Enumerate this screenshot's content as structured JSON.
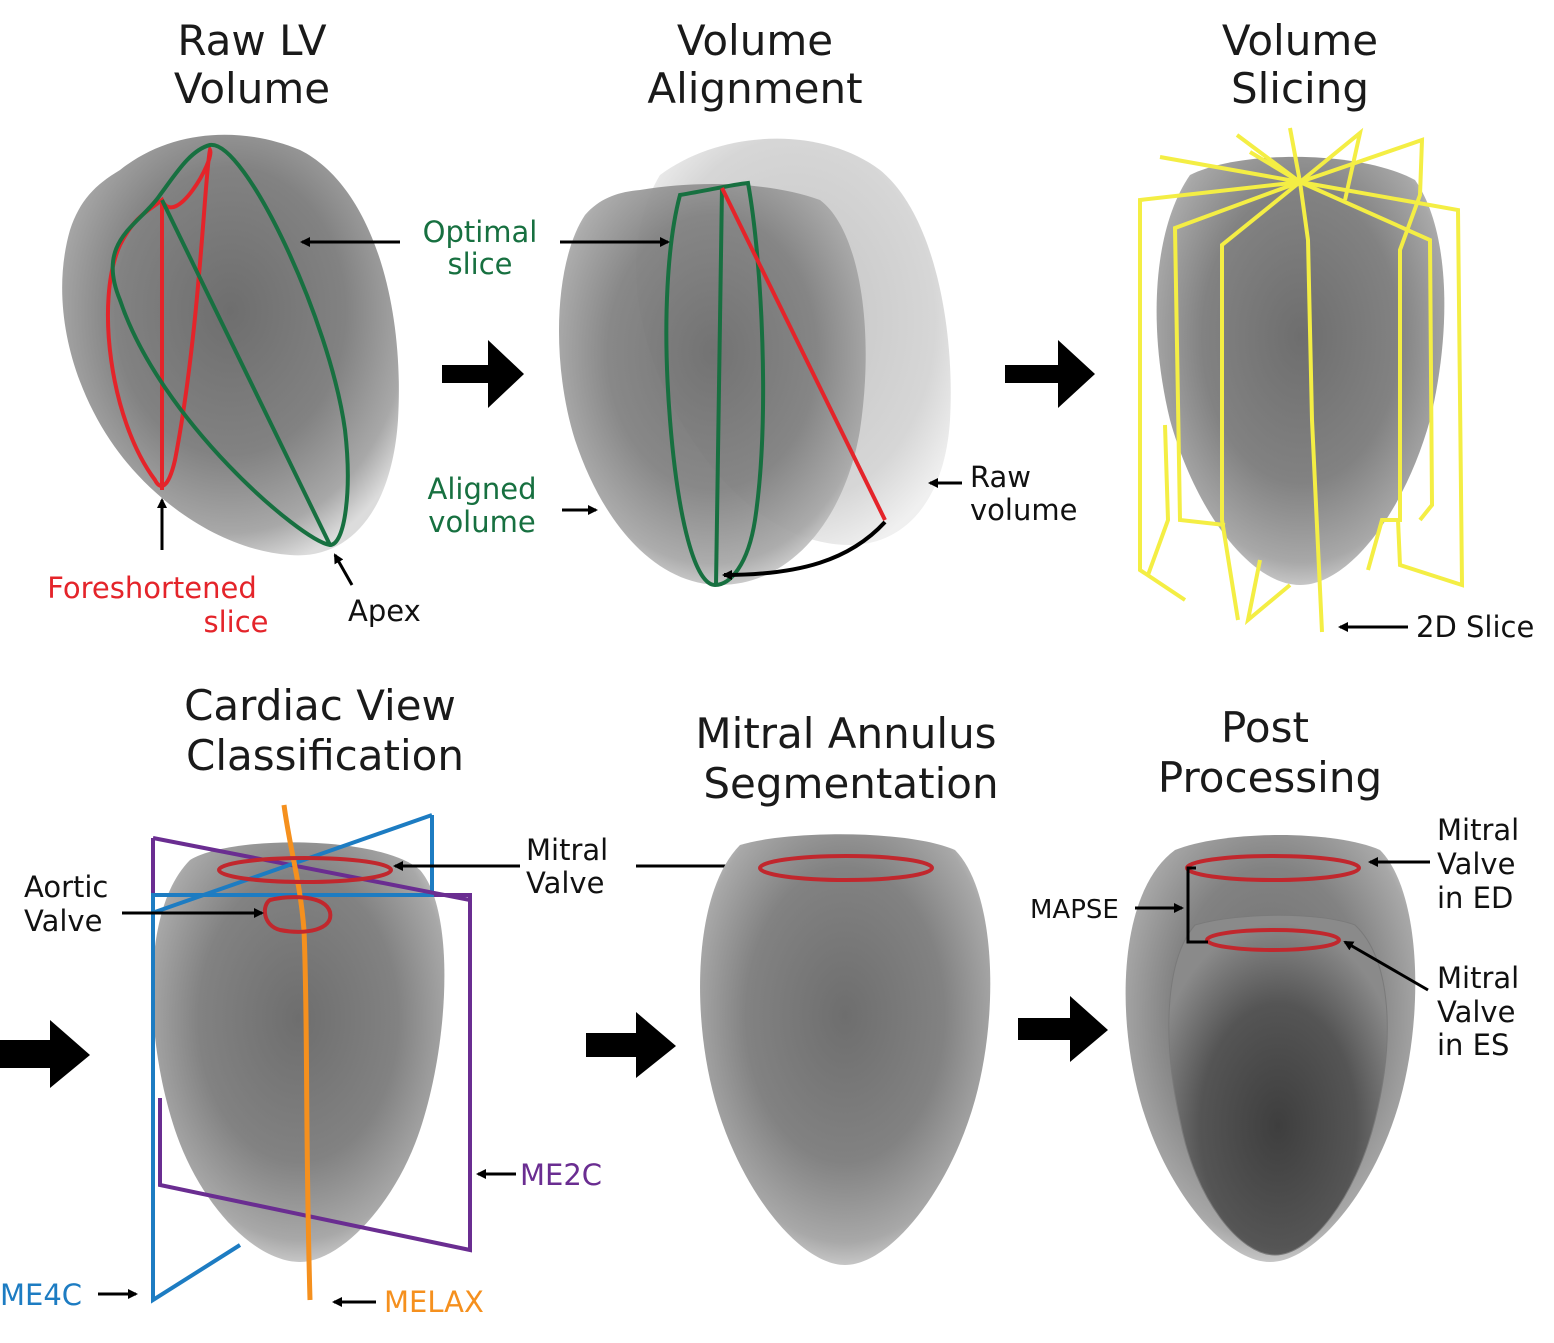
{
  "panels": {
    "raw": {
      "title": [
        "Raw LV",
        "Volume"
      ],
      "foreshortened": [
        "Foreshortened",
        "slice"
      ],
      "apex": "Apex"
    },
    "align": {
      "title": [
        "Volume",
        "Alignment"
      ],
      "optimal": [
        "Optimal",
        "slice"
      ],
      "aligned": [
        "Aligned",
        "volume"
      ],
      "raw": [
        "Raw",
        "volume"
      ]
    },
    "slicing": {
      "title": [
        "Volume",
        "Slicing"
      ],
      "slice2d": "2D Slice"
    },
    "classify": {
      "title": [
        "Cardiac View",
        "Classification"
      ],
      "aortic": [
        "Aortic",
        "Valve"
      ],
      "me2c": "ME2C",
      "me4c": "ME4C",
      "melax": "MELAX"
    },
    "segment": {
      "title": [
        "Mitral Annulus",
        "Segmentation"
      ],
      "mitral": [
        "Mitral",
        "Valve"
      ]
    },
    "post": {
      "title": [
        "Post",
        "Processing"
      ],
      "mapse": "MAPSE",
      "ed": [
        "Mitral",
        "Valve",
        "in ED"
      ],
      "es": [
        "Mitral",
        "Valve",
        "in ES"
      ]
    }
  },
  "colors": {
    "green": "#177040",
    "red": "#e4242a",
    "yellow": "#f4ee44",
    "purple": "#6a2d91",
    "blue": "#1d7cc2",
    "orange": "#f5901e"
  }
}
